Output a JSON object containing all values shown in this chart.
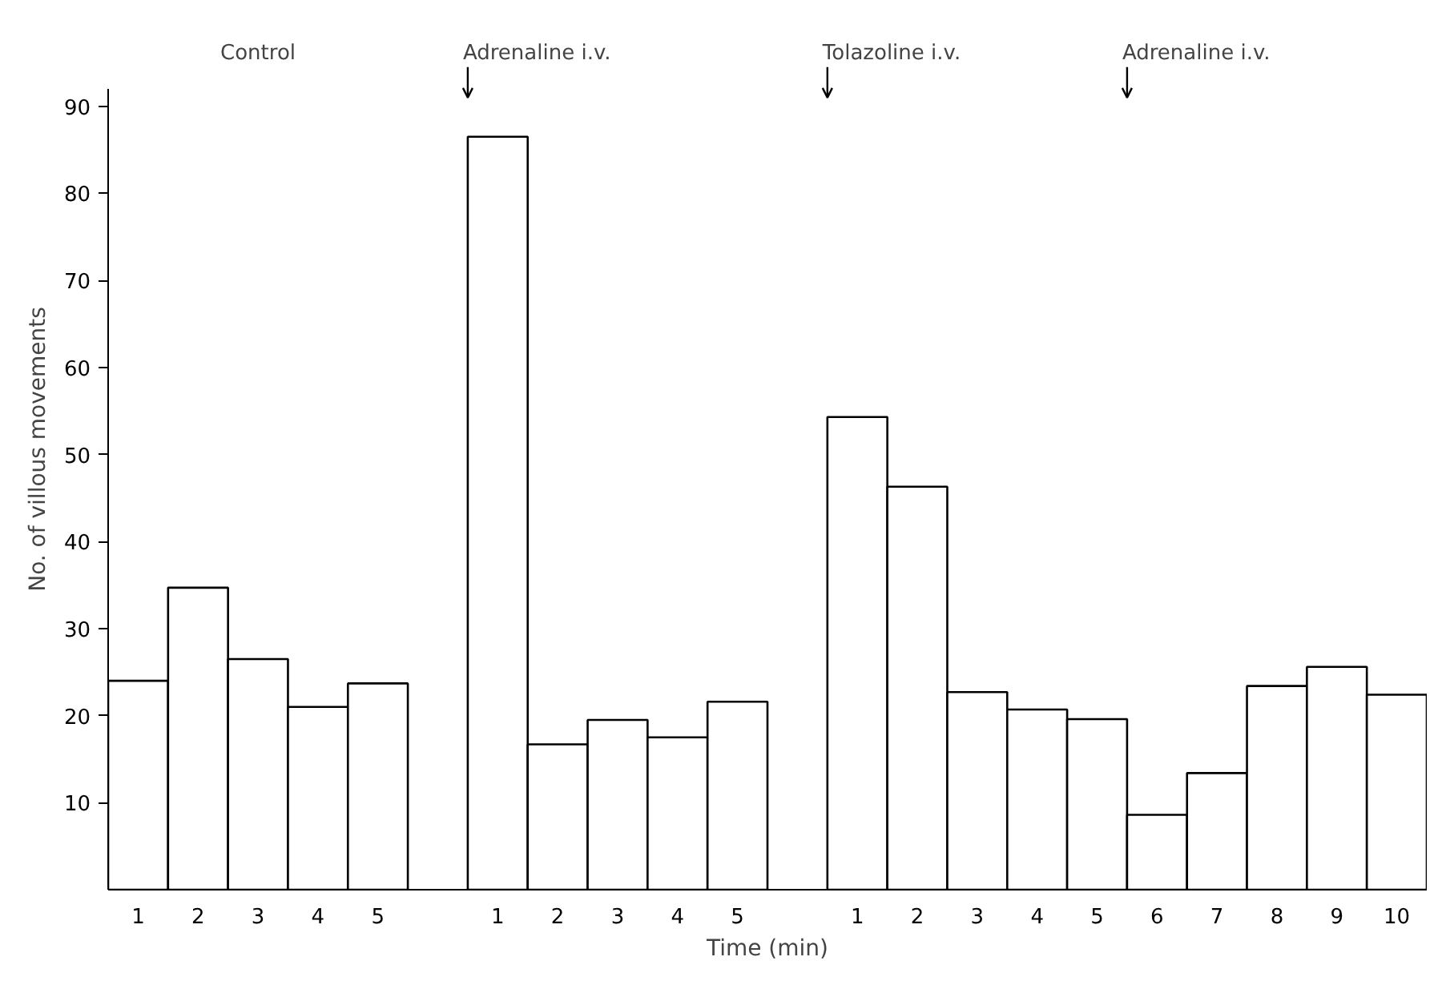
{
  "chart_data": {
    "type": "bar",
    "xlabel": "Time (min)",
    "ylabel": "No. of villous movements",
    "categories": [
      "1",
      "2",
      "3",
      "4",
      "5",
      null,
      "1",
      "2",
      "3",
      "4",
      "5",
      null,
      "1",
      "2",
      "3",
      "4",
      "5",
      "6",
      "7",
      "8",
      "9",
      "10"
    ],
    "values": [
      24,
      34.7,
      26.5,
      21,
      23.7,
      null,
      86.5,
      16.7,
      19.5,
      17.5,
      21.6,
      null,
      54.3,
      46.3,
      22.7,
      20.7,
      19.6,
      8.6,
      13.4,
      23.4,
      25.6,
      22.4
    ],
    "color": "#ffffff",
    "ylim": [
      0,
      92
    ],
    "yticks": [
      10,
      20,
      30,
      40,
      50,
      60,
      70,
      80,
      90
    ],
    "grid": false,
    "annotations": [
      "Control",
      "Adrenaline i.v.",
      "Tolazoline i.v.",
      "Adrenaline i.v."
    ]
  }
}
